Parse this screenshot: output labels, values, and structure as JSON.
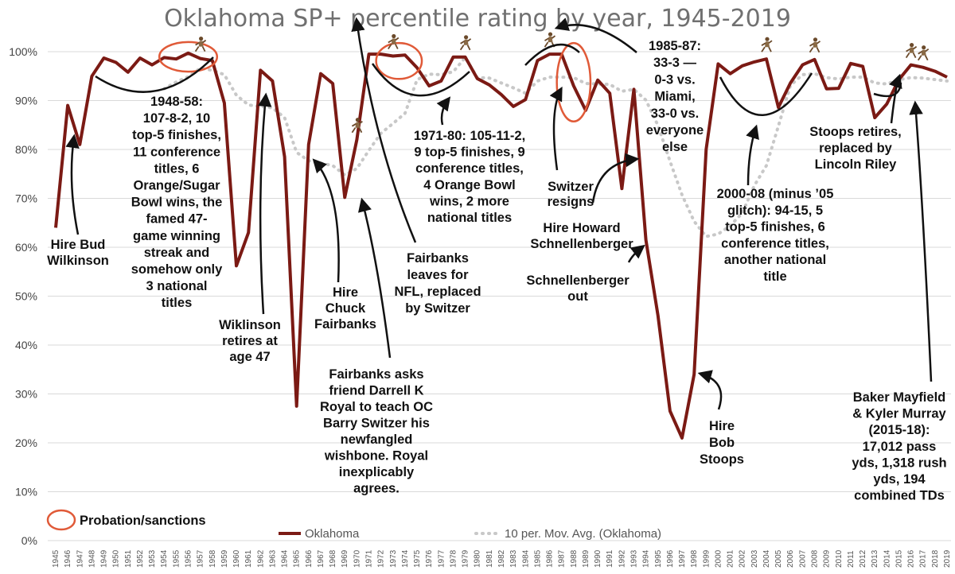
{
  "chart_data": {
    "type": "line",
    "title": "Oklahoma SP+ percentile rating by year, 1945-2019",
    "xlabel": "",
    "ylabel": "",
    "ylim": [
      0,
      100
    ],
    "y_ticks": [
      "0%",
      "10%",
      "20%",
      "30%",
      "40%",
      "50%",
      "60%",
      "70%",
      "80%",
      "90%",
      "100%"
    ],
    "grid": true,
    "x": [
      "1945",
      "1946",
      "1947",
      "1948",
      "1949",
      "1950",
      "1951",
      "1952",
      "1953",
      "1954",
      "1955",
      "1956",
      "1957",
      "1958",
      "1959",
      "1960",
      "1961",
      "1962",
      "1963",
      "1964",
      "1965",
      "1966",
      "1967",
      "1968",
      "1969",
      "1970",
      "1971",
      "1972",
      "1973",
      "1974",
      "1975",
      "1976",
      "1977",
      "1978",
      "1979",
      "1980",
      "1981",
      "1982",
      "1983",
      "1984",
      "1985",
      "1986",
      "1987",
      "1988",
      "1989",
      "1990",
      "1991",
      "1992",
      "1993",
      "1994",
      "1995",
      "1996",
      "1997",
      "1998",
      "1999",
      "2000",
      "2001",
      "2002",
      "2003",
      "2004",
      "2005",
      "2006",
      "2007",
      "2008",
      "2009",
      "2010",
      "2011",
      "2012",
      "2013",
      "2014",
      "2015",
      "2016",
      "2017",
      "2018",
      "2019"
    ],
    "series": [
      {
        "name": "Oklahoma",
        "color": "#7B1A14",
        "style": "solid",
        "values": [
          64,
          89,
          81,
          95,
          98.7,
          97.8,
          95.8,
          98.7,
          97.3,
          98.8,
          98.5,
          99.7,
          98.6,
          98.2,
          89.5,
          56.2,
          63,
          96.2,
          94,
          78.5,
          27.5,
          81,
          95.5,
          93.5,
          70.2,
          82,
          99.5,
          99.5,
          99.1,
          99.3,
          96.7,
          93,
          94,
          98.9,
          98.9,
          94.5,
          93.2,
          91.2,
          88.8,
          90.2,
          98.2,
          99.5,
          99.5,
          93,
          88,
          94.2,
          91.5,
          72,
          92.3,
          61.5,
          46,
          26.5,
          21,
          34,
          80,
          97.5,
          95.5,
          97.1,
          97.9,
          98.5,
          88.6,
          93.6,
          97.3,
          98.4,
          92.4,
          92.5,
          97.6,
          97,
          86.5,
          89.3,
          94.3,
          97.3,
          96.8,
          96,
          94.8
        ]
      },
      {
        "name": "10 per. Mov. Avg. (Oklahoma)",
        "color": "#c8c8c8",
        "style": "dotted",
        "values": [
          null,
          null,
          null,
          null,
          null,
          null,
          null,
          null,
          null,
          92.4,
          93.8,
          94.9,
          96.6,
          96.2,
          95.3,
          91.1,
          89.1,
          88.8,
          88.5,
          86.5,
          79.4,
          77.7,
          77.2,
          76.7,
          74.8,
          76.1,
          79.8,
          83.3,
          85.3,
          87.4,
          94.3,
          95.4,
          95.3,
          95.9,
          98.8,
          94.7,
          94.6,
          93.6,
          92.6,
          91.5,
          94.0,
          94.8,
          94.8,
          94.7,
          93.5,
          93.4,
          93.3,
          91.9,
          92.3,
          90.1,
          84.9,
          77.6,
          70.7,
          65.3,
          62.2,
          62.7,
          64.4,
          67.0,
          72.6,
          76.7,
          84.8,
          93.1,
          95.3,
          95.5,
          94.7,
          94.4,
          94.8,
          94.8,
          93.6,
          93.4,
          94.3,
          94.7,
          94.6,
          94.3,
          94.0
        ]
      }
    ],
    "legend": {
      "placement": "bottom",
      "entries": [
        "Oklahoma",
        "10 per. Mov. Avg. (Oklahoma)"
      ]
    },
    "sanctions_label": "Probation/sanctions",
    "sanctions_periods": [
      {
        "from": "1954",
        "to": "1958"
      },
      {
        "from": "1972",
        "to": "1975"
      },
      {
        "from": "1987",
        "to": "1989"
      }
    ],
    "coach_icon_years": [
      "1957",
      "1970",
      "1973",
      "1979",
      "1986",
      "2004",
      "2008",
      "2016",
      "2017"
    ],
    "annotations": [
      {
        "id": "bud",
        "lines": [
          "Hire Bud",
          "Wilkinson"
        ]
      },
      {
        "id": "era4858",
        "lines": [
          "1948-58:",
          "107-8-2, 10",
          "top-5 finishes,",
          "11 conference",
          "titles, 6",
          "Orange/Sugar",
          "Bowl wins, the",
          "famed 47-",
          "game winning",
          "streak and",
          "somehow only",
          "3 national",
          "titles"
        ]
      },
      {
        "id": "wilk_retire",
        "lines": [
          "Wiklinson",
          "retires at",
          "age 47"
        ]
      },
      {
        "id": "hire_chuck",
        "lines": [
          "Hire",
          "Chuck",
          "Fairbanks"
        ]
      },
      {
        "id": "fair_asks",
        "lines": [
          "Fairbanks asks",
          "friend Darrell K",
          "Royal to teach OC",
          "Barry Switzer his",
          "newfangled",
          "wishbone. Royal",
          "inexplicably",
          "agrees."
        ]
      },
      {
        "id": "fair_leaves",
        "lines": [
          "Fairbanks",
          "leaves for",
          "NFL, replaced",
          "by Switzer"
        ]
      },
      {
        "id": "era7180",
        "lines": [
          "1971-80: 105-11-2,",
          "9 top-5 finishes, 9",
          "conference titles,",
          "4 Orange Bowl",
          "wins, 2 more",
          "national titles"
        ]
      },
      {
        "id": "sw_resigns",
        "lines": [
          "Switzer",
          "resigns"
        ]
      },
      {
        "id": "hire_howard",
        "lines": [
          "Hire Howard",
          "Schnellenberger"
        ]
      },
      {
        "id": "schnell_out",
        "lines": [
          "Schnellenberger",
          "out"
        ]
      },
      {
        "id": "era8587",
        "lines": [
          "1985-87:",
          "33-3 —",
          "0-3 vs.",
          "Miami,",
          "33-0 vs.",
          "everyone",
          "else"
        ]
      },
      {
        "id": "hire_bob",
        "lines": [
          "Hire",
          "Bob",
          "Stoops"
        ]
      },
      {
        "id": "era0008",
        "lines": [
          "2000-08 (minus ’05",
          "glitch): 94-15, 5",
          "top-5 finishes, 6",
          "conference titles,",
          "another national",
          "title"
        ]
      },
      {
        "id": "stoops_ret",
        "lines": [
          "Stoops retires,",
          "replaced by",
          "Lincoln Riley"
        ]
      },
      {
        "id": "baker",
        "lines": [
          "Baker Mayfield",
          "& Kyler Murray",
          "(2015-18):",
          "17,012 pass",
          "yds, 1,318 rush",
          "yds, 194",
          "combined TDs"
        ]
      }
    ]
  }
}
